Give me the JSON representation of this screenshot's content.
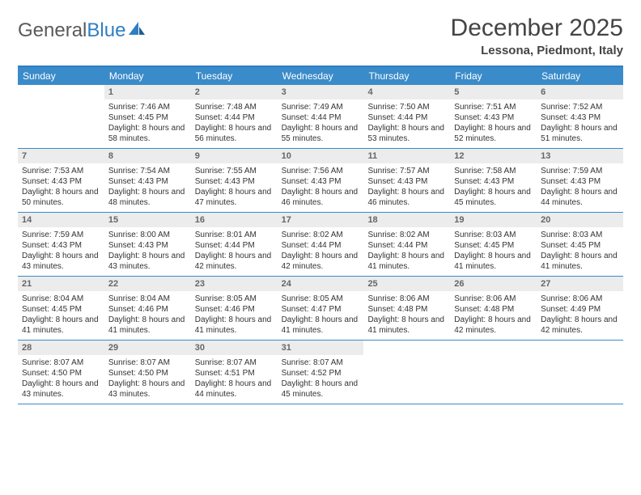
{
  "logo": {
    "text1": "General",
    "text2": "Blue"
  },
  "title": "December 2025",
  "location": "Lessona, Piedmont, Italy",
  "colors": {
    "header_bar": "#3a8bc9",
    "border": "#2f7ec2",
    "daynum_bg": "#ececec",
    "text": "#333333"
  },
  "dow": [
    "Sunday",
    "Monday",
    "Tuesday",
    "Wednesday",
    "Thursday",
    "Friday",
    "Saturday"
  ],
  "weeks": [
    [
      null,
      {
        "n": "1",
        "sunrise": "7:46 AM",
        "sunset": "4:45 PM",
        "day_h": "8",
        "day_m": "58"
      },
      {
        "n": "2",
        "sunrise": "7:48 AM",
        "sunset": "4:44 PM",
        "day_h": "8",
        "day_m": "56"
      },
      {
        "n": "3",
        "sunrise": "7:49 AM",
        "sunset": "4:44 PM",
        "day_h": "8",
        "day_m": "55"
      },
      {
        "n": "4",
        "sunrise": "7:50 AM",
        "sunset": "4:44 PM",
        "day_h": "8",
        "day_m": "53"
      },
      {
        "n": "5",
        "sunrise": "7:51 AM",
        "sunset": "4:43 PM",
        "day_h": "8",
        "day_m": "52"
      },
      {
        "n": "6",
        "sunrise": "7:52 AM",
        "sunset": "4:43 PM",
        "day_h": "8",
        "day_m": "51"
      }
    ],
    [
      {
        "n": "7",
        "sunrise": "7:53 AM",
        "sunset": "4:43 PM",
        "day_h": "8",
        "day_m": "50"
      },
      {
        "n": "8",
        "sunrise": "7:54 AM",
        "sunset": "4:43 PM",
        "day_h": "8",
        "day_m": "48"
      },
      {
        "n": "9",
        "sunrise": "7:55 AM",
        "sunset": "4:43 PM",
        "day_h": "8",
        "day_m": "47"
      },
      {
        "n": "10",
        "sunrise": "7:56 AM",
        "sunset": "4:43 PM",
        "day_h": "8",
        "day_m": "46"
      },
      {
        "n": "11",
        "sunrise": "7:57 AM",
        "sunset": "4:43 PM",
        "day_h": "8",
        "day_m": "46"
      },
      {
        "n": "12",
        "sunrise": "7:58 AM",
        "sunset": "4:43 PM",
        "day_h": "8",
        "day_m": "45"
      },
      {
        "n": "13",
        "sunrise": "7:59 AM",
        "sunset": "4:43 PM",
        "day_h": "8",
        "day_m": "44"
      }
    ],
    [
      {
        "n": "14",
        "sunrise": "7:59 AM",
        "sunset": "4:43 PM",
        "day_h": "8",
        "day_m": "43"
      },
      {
        "n": "15",
        "sunrise": "8:00 AM",
        "sunset": "4:43 PM",
        "day_h": "8",
        "day_m": "43"
      },
      {
        "n": "16",
        "sunrise": "8:01 AM",
        "sunset": "4:44 PM",
        "day_h": "8",
        "day_m": "42"
      },
      {
        "n": "17",
        "sunrise": "8:02 AM",
        "sunset": "4:44 PM",
        "day_h": "8",
        "day_m": "42"
      },
      {
        "n": "18",
        "sunrise": "8:02 AM",
        "sunset": "4:44 PM",
        "day_h": "8",
        "day_m": "41"
      },
      {
        "n": "19",
        "sunrise": "8:03 AM",
        "sunset": "4:45 PM",
        "day_h": "8",
        "day_m": "41"
      },
      {
        "n": "20",
        "sunrise": "8:03 AM",
        "sunset": "4:45 PM",
        "day_h": "8",
        "day_m": "41"
      }
    ],
    [
      {
        "n": "21",
        "sunrise": "8:04 AM",
        "sunset": "4:45 PM",
        "day_h": "8",
        "day_m": "41"
      },
      {
        "n": "22",
        "sunrise": "8:04 AM",
        "sunset": "4:46 PM",
        "day_h": "8",
        "day_m": "41"
      },
      {
        "n": "23",
        "sunrise": "8:05 AM",
        "sunset": "4:46 PM",
        "day_h": "8",
        "day_m": "41"
      },
      {
        "n": "24",
        "sunrise": "8:05 AM",
        "sunset": "4:47 PM",
        "day_h": "8",
        "day_m": "41"
      },
      {
        "n": "25",
        "sunrise": "8:06 AM",
        "sunset": "4:48 PM",
        "day_h": "8",
        "day_m": "41"
      },
      {
        "n": "26",
        "sunrise": "8:06 AM",
        "sunset": "4:48 PM",
        "day_h": "8",
        "day_m": "42"
      },
      {
        "n": "27",
        "sunrise": "8:06 AM",
        "sunset": "4:49 PM",
        "day_h": "8",
        "day_m": "42"
      }
    ],
    [
      {
        "n": "28",
        "sunrise": "8:07 AM",
        "sunset": "4:50 PM",
        "day_h": "8",
        "day_m": "43"
      },
      {
        "n": "29",
        "sunrise": "8:07 AM",
        "sunset": "4:50 PM",
        "day_h": "8",
        "day_m": "43"
      },
      {
        "n": "30",
        "sunrise": "8:07 AM",
        "sunset": "4:51 PM",
        "day_h": "8",
        "day_m": "44"
      },
      {
        "n": "31",
        "sunrise": "8:07 AM",
        "sunset": "4:52 PM",
        "day_h": "8",
        "day_m": "45"
      },
      null,
      null,
      null
    ]
  ],
  "labels": {
    "sunrise": "Sunrise:",
    "sunset": "Sunset:",
    "daylight": "Daylight:",
    "hours": "hours",
    "and": "and",
    "minutes": "minutes."
  }
}
